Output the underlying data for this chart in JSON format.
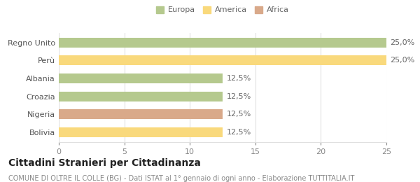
{
  "categories": [
    "Bolivia",
    "Nigeria",
    "Croazia",
    "Albania",
    "Perù",
    "Regno Unito"
  ],
  "values": [
    12.5,
    12.5,
    12.5,
    12.5,
    25.0,
    25.0
  ],
  "bar_colors": [
    "#f9d97c",
    "#d9a98a",
    "#b5c98e",
    "#b5c98e",
    "#f9d97c",
    "#b5c98e"
  ],
  "bar_labels": [
    "12,5%",
    "12,5%",
    "12,5%",
    "12,5%",
    "25,0%",
    "25,0%"
  ],
  "legend_labels": [
    "Europa",
    "America",
    "Africa"
  ],
  "legend_colors": [
    "#b5c98e",
    "#f9d97c",
    "#d9a98a"
  ],
  "title": "Cittadini Stranieri per Cittadinanza",
  "subtitle": "COMUNE DI OLTRE IL COLLE (BG) - Dati ISTAT al 1° gennaio di ogni anno - Elaborazione TUTTITALIA.IT",
  "xlim": [
    0,
    25
  ],
  "xticks": [
    0,
    5,
    10,
    15,
    20,
    25
  ],
  "background_color": "#ffffff",
  "grid_color": "#e0e0e0",
  "title_fontsize": 10,
  "subtitle_fontsize": 7,
  "label_fontsize": 8,
  "tick_fontsize": 8,
  "bar_height": 0.55
}
